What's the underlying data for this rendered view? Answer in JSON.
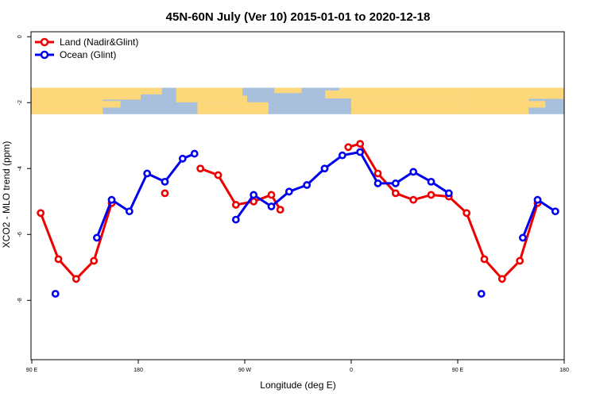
{
  "chart_data": {
    "type": "line",
    "title": "45N-60N July (Ver 10)   2015-01-01 to 2020-12-18",
    "xlabel": "Longitude (deg E)",
    "ylabel": "XCO2 - MLO trend (ppm)",
    "xlim": [
      90,
      540
    ],
    "ylim": [
      -9.8,
      0.15
    ],
    "x_ticks": [
      {
        "value": 90,
        "label": "90 E"
      },
      {
        "value": 180,
        "label": "180"
      },
      {
        "value": 270,
        "label": "90 W"
      },
      {
        "value": 360,
        "label": "0"
      },
      {
        "value": 450,
        "label": "90 E"
      },
      {
        "value": 540,
        "label": "180"
      }
    ],
    "y_ticks": [
      {
        "value": 0,
        "label": "0"
      },
      {
        "value": -2,
        "label": "-2"
      },
      {
        "value": -4,
        "label": "-4"
      },
      {
        "value": -6,
        "label": "-6"
      },
      {
        "value": -8,
        "label": "-8"
      }
    ],
    "map_band": {
      "y_top": -1.55,
      "y_bottom": -2.35,
      "ocean_color": "#a8c0dc",
      "land_color": "#fdd87a"
    },
    "legend_position": "top-left",
    "series": [
      {
        "name": "Land (Nadir&Glint)",
        "color": "#ee0000",
        "segments": [
          [
            [
              97.5,
              -5.35
            ],
            [
              112.5,
              -6.75
            ],
            [
              127.5,
              -7.35
            ],
            [
              142.5,
              -6.8
            ],
            [
              157.5,
              -5.05
            ]
          ],
          [
            [
              202.5,
              -4.75
            ]
          ],
          [
            [
              232.5,
              -4.0
            ],
            [
              247.5,
              -4.2
            ],
            [
              262.5,
              -5.1
            ],
            [
              277.5,
              -5.0
            ],
            [
              292.5,
              -4.8
            ],
            [
              300,
              -5.25
            ]
          ],
          [
            [
              357.5,
              -3.35
            ],
            [
              367.5,
              -3.25
            ],
            [
              382.5,
              -4.15
            ],
            [
              397.5,
              -4.75
            ],
            [
              412.5,
              -4.95
            ],
            [
              427.5,
              -4.8
            ],
            [
              442.5,
              -4.85
            ],
            [
              457.5,
              -5.35
            ],
            [
              472.5,
              -6.75
            ],
            [
              487.5,
              -7.35
            ],
            [
              502.5,
              -6.8
            ],
            [
              517.5,
              -5.05
            ]
          ]
        ]
      },
      {
        "name": "Ocean (Glint)",
        "color": "#0000ee",
        "segments": [
          [
            [
              110,
              -7.8
            ]
          ],
          [
            [
              145,
              -6.1
            ],
            [
              157.5,
              -4.95
            ],
            [
              172.5,
              -5.3
            ],
            [
              187.5,
              -4.15
            ],
            [
              202.5,
              -4.4
            ],
            [
              217.5,
              -3.7
            ],
            [
              227.5,
              -3.55
            ]
          ],
          [
            [
              262.5,
              -5.55
            ],
            [
              277.5,
              -4.8
            ],
            [
              292.5,
              -5.15
            ],
            [
              307.5,
              -4.7
            ],
            [
              322.5,
              -4.5
            ],
            [
              337.5,
              -4.0
            ],
            [
              352.5,
              -3.6
            ],
            [
              367.5,
              -3.5
            ],
            [
              382.5,
              -4.45
            ],
            [
              397.5,
              -4.45
            ],
            [
              412.5,
              -4.1
            ],
            [
              427.5,
              -4.4
            ],
            [
              442.5,
              -4.75
            ]
          ],
          [
            [
              470,
              -7.8
            ]
          ],
          [
            [
              505,
              -6.1
            ],
            [
              517.5,
              -4.95
            ],
            [
              532.5,
              -5.3
            ]
          ]
        ]
      }
    ]
  }
}
